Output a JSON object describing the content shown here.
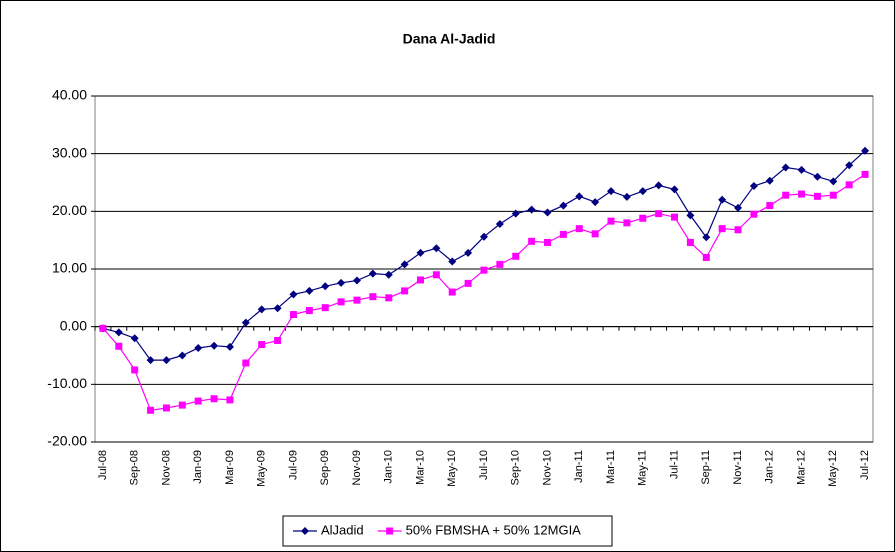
{
  "chart_data": {
    "type": "line",
    "title": "Dana Al-Jadid",
    "categories": [
      "Jul-08",
      null,
      "Sep-08",
      null,
      "Nov-08",
      null,
      "Jan-09",
      null,
      "Mar-09",
      null,
      "May-09",
      null,
      "Jul-09",
      null,
      "Sep-09",
      null,
      "Nov-09",
      null,
      "Jan-10",
      null,
      "Mar-10",
      null,
      "May-10",
      null,
      "Jul-10",
      null,
      "Sep-10",
      null,
      "Nov-10",
      null,
      "Jan-11",
      null,
      "Mar-11",
      null,
      "May-11",
      null,
      "Jul-11",
      null,
      "Sep-11",
      null,
      "Nov-11",
      null,
      "Jan-12",
      null,
      "Mar-12",
      null,
      "May-12",
      null,
      "Jul-12"
    ],
    "series": [
      {
        "name": "AlJadid",
        "color": "#000080",
        "marker": "diamond",
        "values": [
          -0.3,
          -1.0,
          -2.0,
          -5.8,
          -5.8,
          -5.0,
          -3.7,
          -3.3,
          -3.5,
          0.7,
          3.0,
          3.2,
          5.6,
          6.2,
          7.0,
          7.6,
          8.0,
          9.2,
          9.0,
          10.8,
          12.8,
          13.6,
          11.3,
          12.8,
          15.6,
          17.8,
          19.6,
          20.3,
          19.8,
          21.0,
          22.6,
          21.6,
          23.5,
          22.5,
          23.5,
          24.5,
          23.8,
          19.3,
          15.5,
          22.0,
          20.6,
          24.4,
          25.3,
          27.6,
          27.2,
          26.0,
          25.2,
          28.0,
          30.5
        ]
      },
      {
        "name": "50% FBMSHA + 50% 12MGIA",
        "color": "#ff00ff",
        "marker": "square",
        "values": [
          -0.3,
          -3.4,
          -7.5,
          -14.5,
          -14.1,
          -13.6,
          -12.9,
          -12.5,
          -12.7,
          -6.3,
          -3.1,
          -2.4,
          2.1,
          2.8,
          3.3,
          4.3,
          4.6,
          5.2,
          5.0,
          6.2,
          8.1,
          9.0,
          6.0,
          7.5,
          9.8,
          10.8,
          12.2,
          14.8,
          14.6,
          16.0,
          17.0,
          16.1,
          18.3,
          18.0,
          18.8,
          19.6,
          19.0,
          14.6,
          12.0,
          17.0,
          16.8,
          19.5,
          21.0,
          22.8,
          23.0,
          22.6,
          22.8,
          24.6,
          26.4
        ]
      }
    ],
    "ylim": [
      -20,
      40
    ],
    "yticks": [
      {
        "value": -20,
        "label": "-20.00"
      },
      {
        "value": -10,
        "label": "-10.00"
      },
      {
        "value": 0,
        "label": "0.00"
      },
      {
        "value": 10,
        "label": "10.00"
      },
      {
        "value": 20,
        "label": "20.00"
      },
      {
        "value": 30,
        "label": "30.00"
      },
      {
        "value": 40,
        "label": "40.00"
      }
    ],
    "grid": true,
    "legend": "bottom"
  }
}
